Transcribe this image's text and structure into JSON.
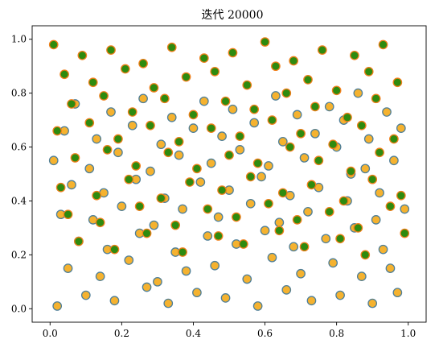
{
  "chart_data": {
    "type": "scatter",
    "title": "迭代 20000",
    "xlabel": "",
    "ylabel": "",
    "xlim": [
      -0.05,
      1.05
    ],
    "ylim": [
      -0.05,
      1.05
    ],
    "xticks": [
      "0.0",
      "0.2",
      "0.4",
      "0.6",
      "0.8",
      "1.0"
    ],
    "yticks": [
      "0.0",
      "0.2",
      "0.4",
      "0.6",
      "0.8",
      "1.0"
    ],
    "grid": false,
    "series": [
      {
        "x": [
          0.02,
          0.1,
          0.18,
          0.27,
          0.33,
          0.41,
          0.49,
          0.58,
          0.66,
          0.73,
          0.81,
          0.9,
          0.97,
          0.05,
          0.14,
          0.22,
          0.3,
          0.38,
          0.46,
          0.55,
          0.62,
          0.7,
          0.79,
          0.87,
          0.95,
          0.08,
          0.16,
          0.25,
          0.35,
          0.44,
          0.52,
          0.6,
          0.68,
          0.77,
          0.85,
          0.93,
          0.03,
          0.12,
          0.2,
          0.29,
          0.37,
          0.47,
          0.56,
          0.64,
          0.72,
          0.83,
          0.91,
          0.99,
          0.06,
          0.15,
          0.24,
          0.32,
          0.42,
          0.5,
          0.59,
          0.67,
          0.75,
          0.84,
          0.92,
          0.01,
          0.11,
          0.19,
          0.28,
          0.36,
          0.45,
          0.53,
          0.61,
          0.71,
          0.8,
          0.88,
          0.96,
          0.04,
          0.13,
          0.23,
          0.31,
          0.4,
          0.48,
          0.57,
          0.65,
          0.74,
          0.82,
          0.89,
          0.98,
          0.07,
          0.17,
          0.26,
          0.34,
          0.43,
          0.51,
          0.63,
          0.69,
          0.78,
          0.86,
          0.94
        ],
        "y": [
          0.01,
          0.05,
          0.03,
          0.08,
          0.02,
          0.06,
          0.04,
          0.01,
          0.07,
          0.03,
          0.05,
          0.02,
          0.06,
          0.15,
          0.12,
          0.18,
          0.1,
          0.14,
          0.16,
          0.11,
          0.19,
          0.13,
          0.17,
          0.12,
          0.15,
          0.25,
          0.22,
          0.28,
          0.21,
          0.27,
          0.24,
          0.29,
          0.23,
          0.26,
          0.3,
          0.22,
          0.35,
          0.33,
          0.38,
          0.31,
          0.37,
          0.34,
          0.39,
          0.32,
          0.36,
          0.4,
          0.33,
          0.37,
          0.46,
          0.43,
          0.48,
          0.41,
          0.47,
          0.44,
          0.49,
          0.42,
          0.45,
          0.5,
          0.43,
          0.55,
          0.52,
          0.58,
          0.51,
          0.57,
          0.54,
          0.59,
          0.53,
          0.56,
          0.6,
          0.52,
          0.55,
          0.66,
          0.63,
          0.68,
          0.61,
          0.67,
          0.64,
          0.69,
          0.62,
          0.65,
          0.7,
          0.63,
          0.67,
          0.76,
          0.73,
          0.78,
          0.71,
          0.77,
          0.74,
          0.79,
          0.72,
          0.75,
          0.8,
          0.73
        ],
        "marker_color": "#f5b22f",
        "edge_color": "#4f7f98"
      },
      {
        "x": [
          0.01,
          0.09,
          0.17,
          0.26,
          0.34,
          0.43,
          0.51,
          0.6,
          0.68,
          0.76,
          0.85,
          0.93,
          0.04,
          0.12,
          0.21,
          0.29,
          0.38,
          0.46,
          0.55,
          0.63,
          0.72,
          0.8,
          0.89,
          0.97,
          0.06,
          0.15,
          0.23,
          0.32,
          0.4,
          0.49,
          0.57,
          0.66,
          0.74,
          0.83,
          0.91,
          0.02,
          0.11,
          0.19,
          0.28,
          0.36,
          0.45,
          0.53,
          0.62,
          0.7,
          0.79,
          0.87,
          0.96,
          0.07,
          0.16,
          0.24,
          0.33,
          0.41,
          0.5,
          0.58,
          0.67,
          0.75,
          0.84,
          0.92,
          0.03,
          0.13,
          0.22,
          0.31,
          0.39,
          0.48,
          0.56,
          0.65,
          0.73,
          0.82,
          0.9,
          0.98,
          0.05,
          0.14,
          0.25,
          0.35,
          0.44,
          0.52,
          0.61,
          0.69,
          0.78,
          0.86,
          0.95,
          0.08,
          0.18,
          0.27,
          0.37,
          0.47,
          0.54,
          0.64,
          0.71,
          0.81,
          0.88,
          0.99
        ],
        "y": [
          0.98,
          0.94,
          0.96,
          0.91,
          0.97,
          0.93,
          0.95,
          0.99,
          0.92,
          0.96,
          0.94,
          0.98,
          0.87,
          0.84,
          0.89,
          0.82,
          0.86,
          0.88,
          0.83,
          0.9,
          0.85,
          0.81,
          0.88,
          0.84,
          0.76,
          0.79,
          0.73,
          0.78,
          0.72,
          0.77,
          0.74,
          0.8,
          0.75,
          0.71,
          0.78,
          0.66,
          0.69,
          0.63,
          0.68,
          0.62,
          0.67,
          0.64,
          0.7,
          0.65,
          0.61,
          0.68,
          0.63,
          0.56,
          0.59,
          0.53,
          0.58,
          0.52,
          0.57,
          0.54,
          0.6,
          0.55,
          0.51,
          0.58,
          0.45,
          0.42,
          0.48,
          0.41,
          0.47,
          0.44,
          0.49,
          0.43,
          0.46,
          0.4,
          0.48,
          0.42,
          0.35,
          0.32,
          0.38,
          0.31,
          0.37,
          0.34,
          0.39,
          0.33,
          0.36,
          0.3,
          0.38,
          0.25,
          0.22,
          0.28,
          0.21,
          0.27,
          0.24,
          0.29,
          0.23,
          0.26,
          0.2,
          0.28
        ],
        "marker_color": "#2e8b0f",
        "edge_color": "#f07f1a"
      }
    ]
  }
}
